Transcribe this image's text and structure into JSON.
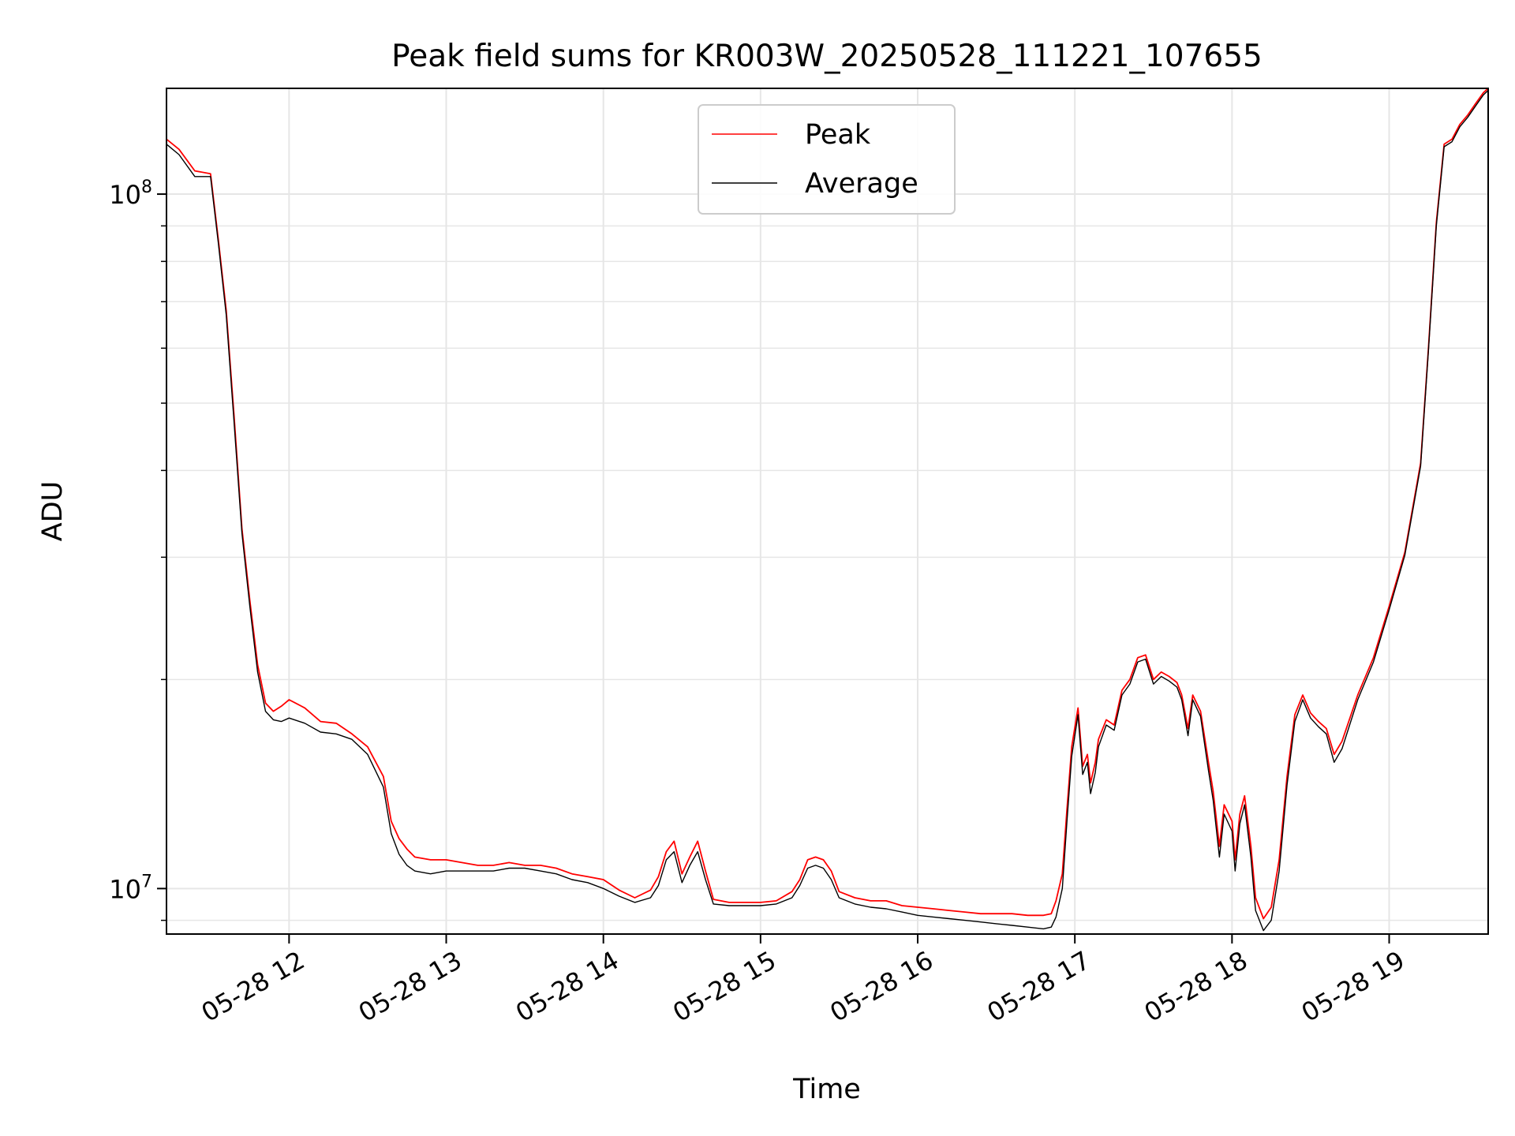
{
  "chart_data": {
    "type": "line",
    "title": "Peak field sums for KR003W_20250528_111221_107655",
    "xlabel": "Time",
    "ylabel": "ADU",
    "x_unit": "hours of 2025-05-28",
    "xlim": [
      11.22,
      19.63
    ],
    "ylim": [
      8600000,
      142000000
    ],
    "yscale": "log",
    "x_ticks": [
      12,
      13,
      14,
      15,
      16,
      17,
      18,
      19
    ],
    "x_tick_labels": [
      "05-28 12",
      "05-28 13",
      "05-28 14",
      "05-28 15",
      "05-28 16",
      "05-28 17",
      "05-28 18",
      "05-28 19"
    ],
    "y_ticks": [
      {
        "base": "10",
        "exp": "7",
        "value": 10000000
      },
      {
        "base": "10",
        "exp": "8",
        "value": 100000000
      }
    ],
    "grid": true,
    "legend": "upper-center",
    "series": [
      {
        "name": "Peak",
        "color": "#ff0000",
        "x": [
          11.22,
          11.3,
          11.4,
          11.5,
          11.55,
          11.6,
          11.65,
          11.7,
          11.75,
          11.8,
          11.85,
          11.9,
          11.95,
          12.0,
          12.1,
          12.2,
          12.3,
          12.4,
          12.5,
          12.6,
          12.65,
          12.7,
          12.75,
          12.8,
          12.9,
          13.0,
          13.1,
          13.2,
          13.3,
          13.4,
          13.5,
          13.6,
          13.7,
          13.8,
          13.9,
          14.0,
          14.1,
          14.2,
          14.3,
          14.35,
          14.4,
          14.45,
          14.5,
          14.55,
          14.6,
          14.65,
          14.7,
          14.8,
          14.9,
          15.0,
          15.1,
          15.2,
          15.25,
          15.3,
          15.35,
          15.4,
          15.45,
          15.5,
          15.6,
          15.7,
          15.8,
          15.9,
          16.0,
          16.1,
          16.2,
          16.3,
          16.4,
          16.5,
          16.6,
          16.7,
          16.8,
          16.85,
          16.88,
          16.92,
          16.95,
          16.98,
          17.02,
          17.05,
          17.08,
          17.1,
          17.13,
          17.15,
          17.2,
          17.25,
          17.3,
          17.35,
          17.4,
          17.45,
          17.5,
          17.55,
          17.6,
          17.65,
          17.68,
          17.72,
          17.75,
          17.8,
          17.85,
          17.88,
          17.92,
          17.95,
          18.0,
          18.02,
          18.05,
          18.08,
          18.12,
          18.15,
          18.2,
          18.25,
          18.3,
          18.35,
          18.4,
          18.45,
          18.5,
          18.55,
          18.6,
          18.65,
          18.7,
          18.8,
          18.9,
          19.0,
          19.1,
          19.2,
          19.25,
          19.3,
          19.35,
          19.4,
          19.45,
          19.5,
          19.55,
          19.6,
          19.63
        ],
        "y": [
          120000000,
          116000000,
          108000000,
          107000000,
          86000000,
          68000000,
          48000000,
          33000000,
          26000000,
          21000000,
          18500000,
          18000000,
          18300000,
          18700000,
          18200000,
          17400000,
          17300000,
          16700000,
          16000000,
          14500000,
          12500000,
          11800000,
          11400000,
          11100000,
          11000000,
          11000000,
          10900000,
          10800000,
          10800000,
          10900000,
          10800000,
          10800000,
          10700000,
          10500000,
          10400000,
          10300000,
          9950000,
          9700000,
          9950000,
          10400000,
          11300000,
          11700000,
          10500000,
          11100000,
          11700000,
          10600000,
          9650000,
          9550000,
          9550000,
          9550000,
          9600000,
          9900000,
          10300000,
          11000000,
          11100000,
          11000000,
          10600000,
          9900000,
          9700000,
          9600000,
          9600000,
          9450000,
          9400000,
          9350000,
          9300000,
          9250000,
          9200000,
          9200000,
          9200000,
          9150000,
          9150000,
          9200000,
          9600000,
          10500000,
          13000000,
          16000000,
          18200000,
          15000000,
          15600000,
          14200000,
          15200000,
          16400000,
          17500000,
          17200000,
          19300000,
          20000000,
          21500000,
          21700000,
          20000000,
          20500000,
          20200000,
          19800000,
          19000000,
          17000000,
          19000000,
          18000000,
          15200000,
          13800000,
          11500000,
          13200000,
          12500000,
          11000000,
          12800000,
          13600000,
          11500000,
          9700000,
          9050000,
          9400000,
          11000000,
          14500000,
          17800000,
          19000000,
          17900000,
          17400000,
          17000000,
          15600000,
          16300000,
          19000000,
          21500000,
          25500000,
          30500000,
          41000000,
          60000000,
          91000000,
          118000000,
          120000000,
          126000000,
          130000000,
          135000000,
          140000000,
          142000000
        ]
      },
      {
        "name": "Average",
        "color": "#000000",
        "x": [
          11.22,
          11.3,
          11.4,
          11.5,
          11.55,
          11.6,
          11.65,
          11.7,
          11.75,
          11.8,
          11.85,
          11.9,
          11.95,
          12.0,
          12.1,
          12.2,
          12.3,
          12.4,
          12.5,
          12.6,
          12.65,
          12.7,
          12.75,
          12.8,
          12.9,
          13.0,
          13.1,
          13.2,
          13.3,
          13.4,
          13.5,
          13.6,
          13.7,
          13.8,
          13.9,
          14.0,
          14.1,
          14.2,
          14.3,
          14.35,
          14.4,
          14.45,
          14.5,
          14.55,
          14.6,
          14.65,
          14.7,
          14.8,
          14.9,
          15.0,
          15.1,
          15.2,
          15.25,
          15.3,
          15.35,
          15.4,
          15.45,
          15.5,
          15.6,
          15.7,
          15.8,
          15.9,
          16.0,
          16.1,
          16.2,
          16.3,
          16.4,
          16.5,
          16.6,
          16.7,
          16.8,
          16.85,
          16.88,
          16.92,
          16.95,
          16.98,
          17.02,
          17.05,
          17.08,
          17.1,
          17.13,
          17.15,
          17.2,
          17.25,
          17.3,
          17.35,
          17.4,
          17.45,
          17.5,
          17.55,
          17.6,
          17.65,
          17.68,
          17.72,
          17.75,
          17.8,
          17.85,
          17.88,
          17.92,
          17.95,
          18.0,
          18.02,
          18.05,
          18.08,
          18.12,
          18.15,
          18.2,
          18.25,
          18.3,
          18.35,
          18.4,
          18.45,
          18.5,
          18.55,
          18.6,
          18.65,
          18.7,
          18.8,
          18.9,
          19.0,
          19.1,
          19.2,
          19.25,
          19.3,
          19.35,
          19.4,
          19.45,
          19.5,
          19.55,
          19.6,
          19.63
        ],
        "y": [
          118000000,
          114000000,
          106000000,
          106000000,
          85000000,
          67000000,
          47000000,
          32500000,
          25500000,
          20500000,
          18000000,
          17500000,
          17400000,
          17600000,
          17300000,
          16800000,
          16700000,
          16400000,
          15600000,
          14000000,
          12000000,
          11200000,
          10800000,
          10600000,
          10500000,
          10600000,
          10600000,
          10600000,
          10600000,
          10700000,
          10700000,
          10600000,
          10500000,
          10300000,
          10200000,
          10000000,
          9750000,
          9550000,
          9700000,
          10100000,
          11000000,
          11300000,
          10200000,
          10800000,
          11300000,
          10300000,
          9500000,
          9450000,
          9450000,
          9450000,
          9500000,
          9700000,
          10100000,
          10700000,
          10800000,
          10700000,
          10300000,
          9700000,
          9500000,
          9400000,
          9350000,
          9250000,
          9150000,
          9100000,
          9050000,
          9000000,
          8950000,
          8900000,
          8850000,
          8800000,
          8750000,
          8800000,
          9100000,
          10000000,
          12500000,
          15500000,
          17800000,
          14600000,
          15200000,
          13700000,
          14700000,
          16000000,
          17200000,
          16900000,
          19000000,
          19700000,
          21200000,
          21400000,
          19700000,
          20200000,
          19900000,
          19500000,
          18700000,
          16600000,
          18700000,
          17700000,
          14800000,
          13400000,
          11100000,
          12800000,
          12100000,
          10600000,
          12400000,
          13200000,
          11100000,
          9300000,
          8700000,
          9000000,
          10600000,
          14100000,
          17400000,
          18700000,
          17600000,
          17100000,
          16700000,
          15200000,
          15900000,
          18700000,
          21200000,
          25200000,
          30200000,
          40600000,
          59500000,
          90000000,
          117000000,
          119000000,
          125000000,
          129000000,
          134000000,
          139000000,
          141000000
        ]
      }
    ]
  }
}
